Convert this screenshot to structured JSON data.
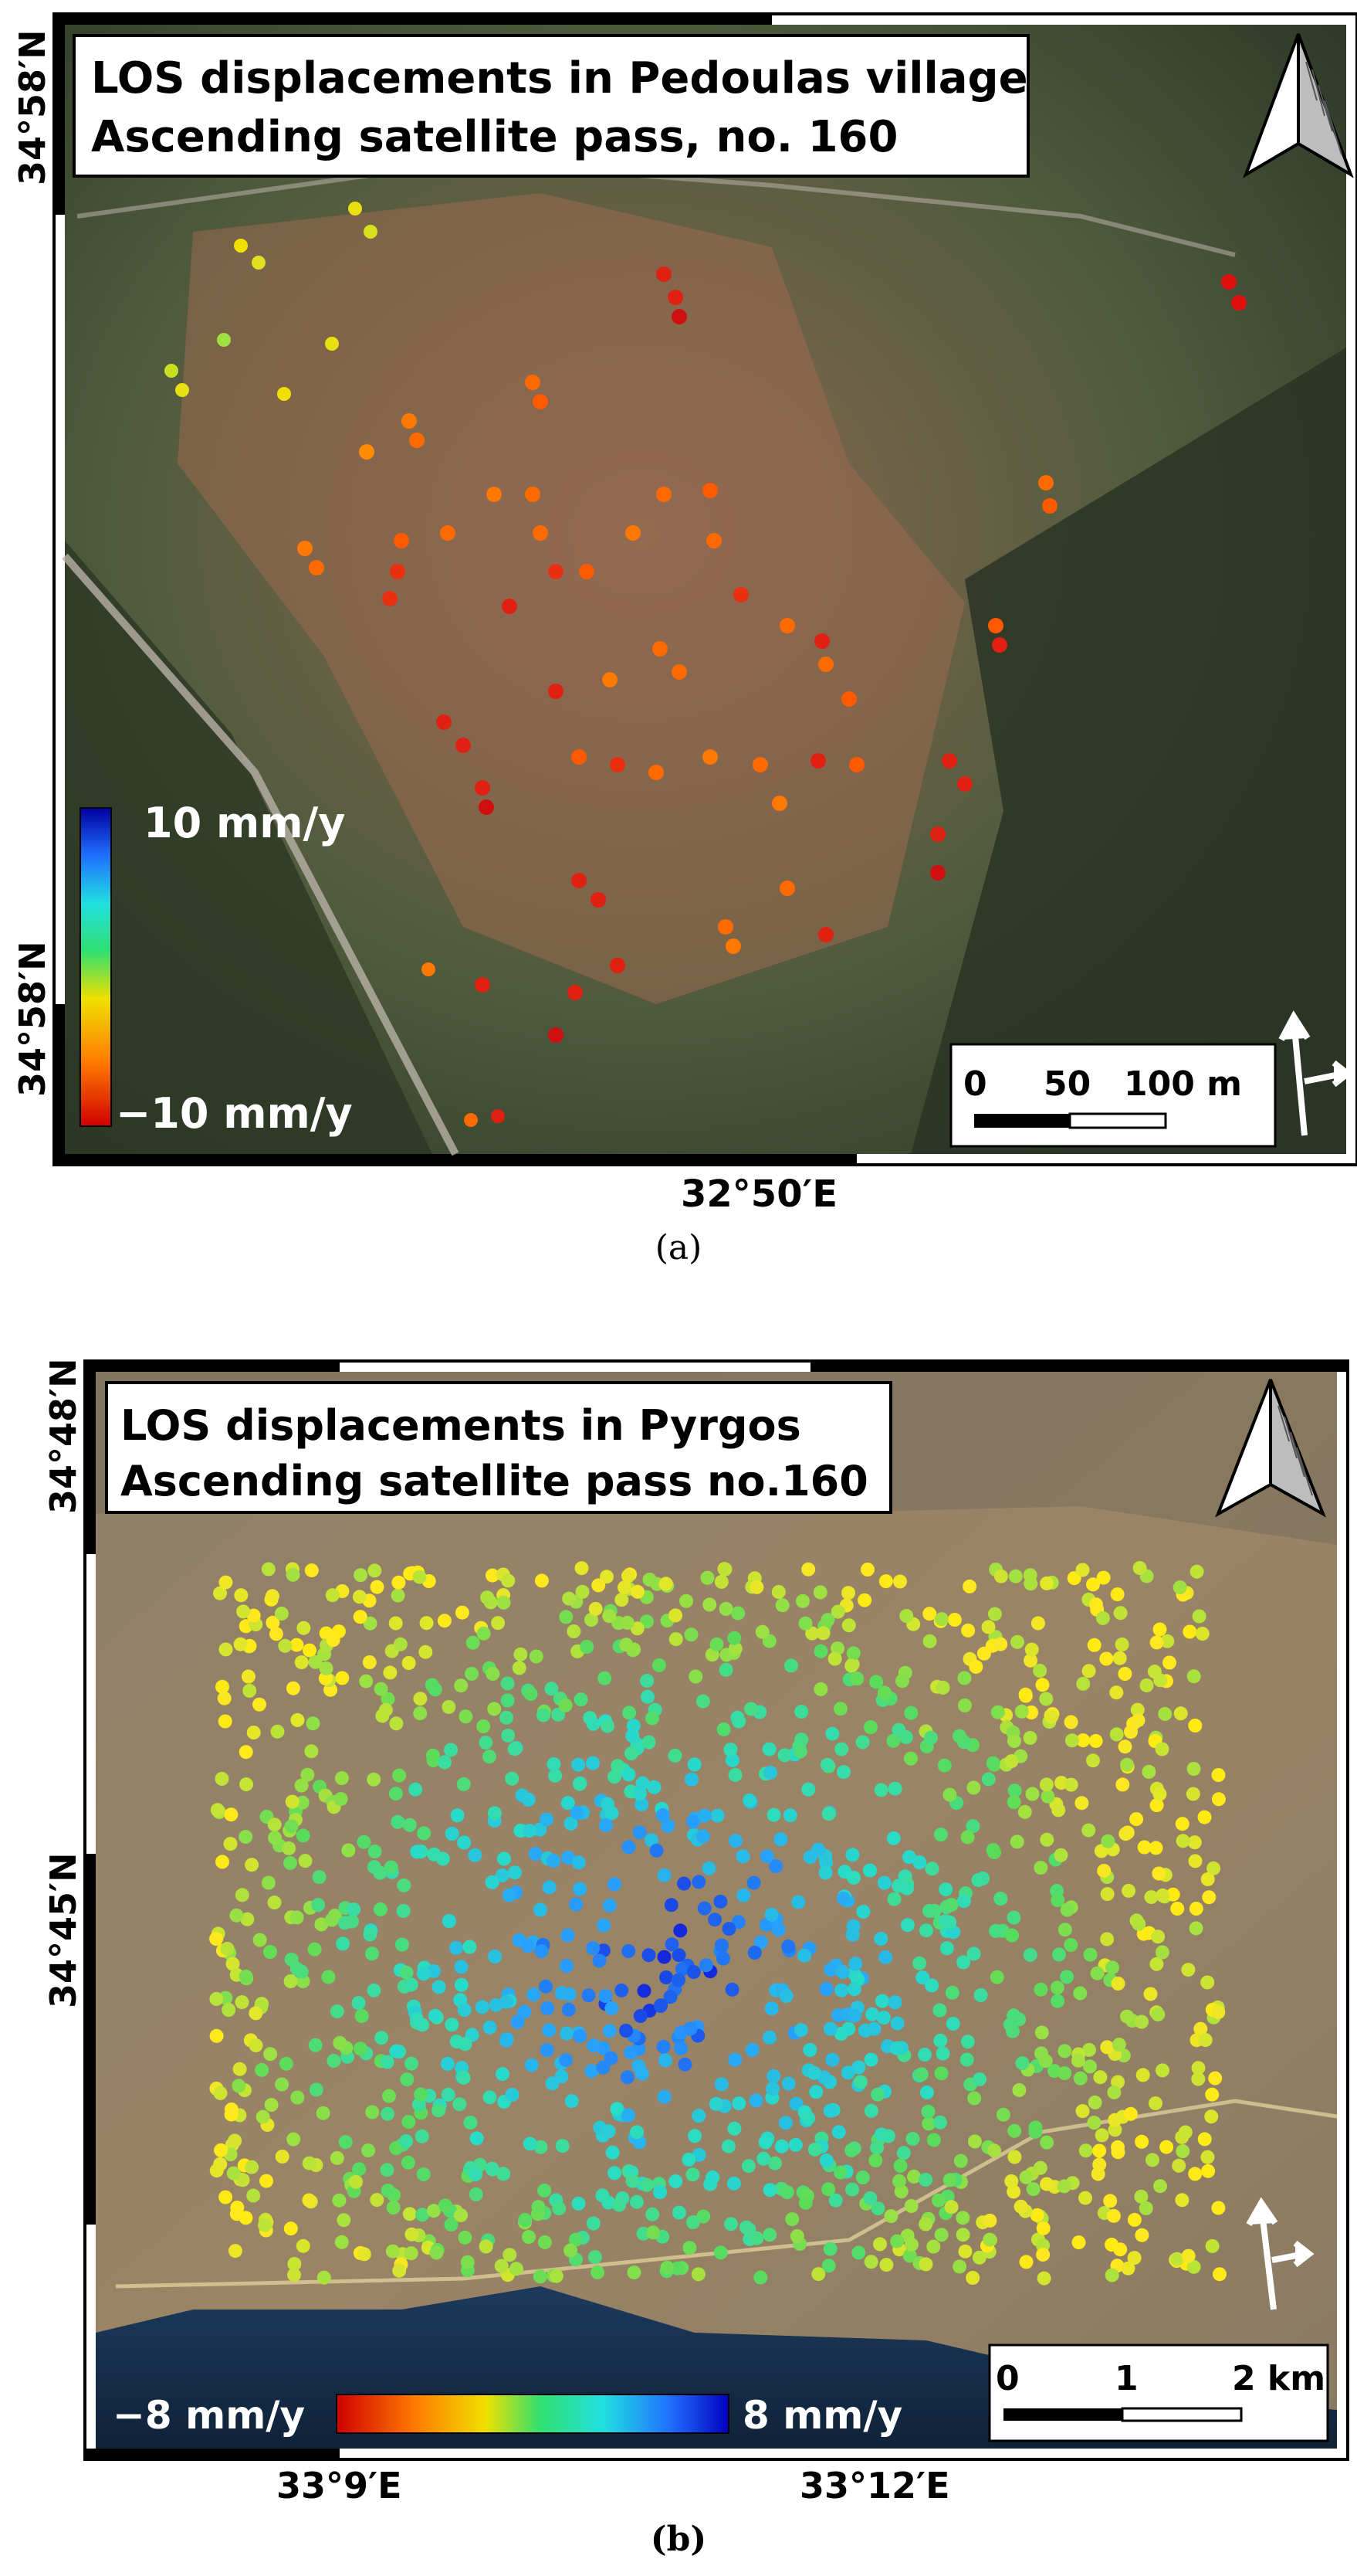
{
  "panel_a": {
    "title_line1": "LOS displacements in Pedoulas village",
    "title_line2": "Ascending satellite pass, no. 160",
    "lat_top": "34°58′N",
    "lat_bottom": "34°58′N",
    "lon_label": "32°50′E",
    "legend_max": "10 mm/y",
    "legend_min": "−10 mm/y",
    "scale_labels": [
      "0",
      "50",
      "100 m"
    ],
    "caption": "(a)",
    "north_icon": "north-arrow-icon",
    "los_icon": "los-direction-icon",
    "colors": {
      "max": "#0000a0",
      "min": "#c00000"
    }
  },
  "panel_b": {
    "title_line1": "LOS displacements in Pyrgos",
    "title_line2": "Ascending satellite pass no.160",
    "lat_top": "34°48′N",
    "lat_mid": "34°45′N",
    "lon_left": "33°9′E",
    "lon_right": "33°12′E",
    "legend_min": "−8 mm/y",
    "legend_max": "8 mm/y",
    "scale_labels": [
      "0",
      "1",
      "2 km"
    ],
    "caption": "(b)",
    "north_icon": "north-arrow-icon",
    "los_icon": "los-direction-icon",
    "colors": {
      "max": "#0000c0",
      "min": "#d00000"
    }
  }
}
